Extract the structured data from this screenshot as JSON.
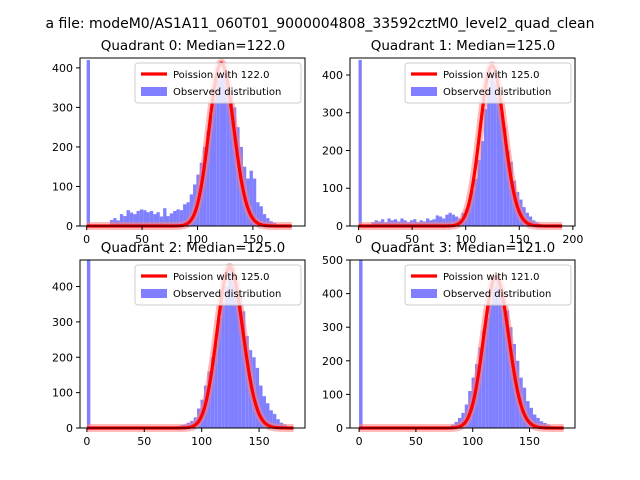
{
  "figure": {
    "suptitle": "a file: modeM0/AS1A11_060T01_9000004808_33592cztM0_level2_quad_clean"
  },
  "colors": {
    "hist": "#7f7fff",
    "fit": "#ff0000",
    "fit_glow": "#ff8080",
    "axis": "#000000"
  },
  "chart_data": [
    {
      "type": "bar",
      "title": "Quadrant 0: Median=122.0",
      "xlabel": "",
      "ylabel": "",
      "xlim": [
        -6,
        197
      ],
      "ylim": [
        0,
        425
      ],
      "xticks": [
        0,
        50,
        100,
        150
      ],
      "yticks": [
        0,
        100,
        200,
        300,
        400
      ],
      "legend": {
        "position": "top-right",
        "fit_label": "Poission with 122.0",
        "hist_label": "Observed distribution"
      },
      "series": [
        {
          "name": "Observed distribution",
          "kind": "hist",
          "bin_width": 3,
          "bins": [
            [
              0,
              420
            ],
            [
              3,
              0
            ],
            [
              6,
              0
            ],
            [
              9,
              0
            ],
            [
              12,
              0
            ],
            [
              15,
              0
            ],
            [
              18,
              0
            ],
            [
              21,
              15
            ],
            [
              24,
              20
            ],
            [
              27,
              14
            ],
            [
              30,
              30
            ],
            [
              33,
              25
            ],
            [
              36,
              40
            ],
            [
              39,
              34
            ],
            [
              42,
              30
            ],
            [
              45,
              38
            ],
            [
              48,
              42
            ],
            [
              51,
              40
            ],
            [
              54,
              35
            ],
            [
              57,
              38
            ],
            [
              60,
              30
            ],
            [
              63,
              35
            ],
            [
              66,
              24
            ],
            [
              69,
              45
            ],
            [
              72,
              25
            ],
            [
              75,
              32
            ],
            [
              78,
              38
            ],
            [
              81,
              42
            ],
            [
              84,
              40
            ],
            [
              87,
              55
            ],
            [
              90,
              60
            ],
            [
              93,
              80
            ],
            [
              96,
              105
            ],
            [
              99,
              130
            ],
            [
              102,
              160
            ],
            [
              105,
              200
            ],
            [
              108,
              240
            ],
            [
              111,
              280
            ],
            [
              114,
              320
            ],
            [
              117,
              370
            ],
            [
              120,
              380
            ],
            [
              123,
              390
            ],
            [
              126,
              350
            ],
            [
              129,
              340
            ],
            [
              132,
              300
            ],
            [
              135,
              250
            ],
            [
              138,
              200
            ],
            [
              141,
              150
            ],
            [
              144,
              120
            ],
            [
              147,
              140
            ],
            [
              150,
              120
            ],
            [
              153,
              60
            ],
            [
              156,
              50
            ],
            [
              159,
              30
            ],
            [
              162,
              20
            ],
            [
              165,
              12
            ],
            [
              168,
              8
            ]
          ]
        },
        {
          "name": "Poission with 122.0",
          "kind": "line",
          "mu": 122.0,
          "scale": 412,
          "x_range": [
            0,
            185
          ]
        }
      ]
    },
    {
      "type": "bar",
      "title": "Quadrant 1: Median=125.0",
      "xlabel": "",
      "ylabel": "",
      "xlim": [
        -8,
        202
      ],
      "ylim": [
        0,
        445
      ],
      "xticks": [
        0,
        50,
        100,
        150,
        200
      ],
      "yticks": [
        0,
        100,
        200,
        300,
        400
      ],
      "legend": {
        "position": "top-right",
        "fit_label": "Poission with 125.0",
        "hist_label": "Observed distribution"
      },
      "series": [
        {
          "name": "Observed distribution",
          "kind": "hist",
          "bin_width": 3,
          "bins": [
            [
              0,
              440
            ],
            [
              3,
              0
            ],
            [
              6,
              0
            ],
            [
              9,
              0
            ],
            [
              12,
              10
            ],
            [
              15,
              15
            ],
            [
              18,
              12
            ],
            [
              21,
              18
            ],
            [
              24,
              10
            ],
            [
              27,
              20
            ],
            [
              30,
              15
            ],
            [
              33,
              18
            ],
            [
              36,
              12
            ],
            [
              39,
              20
            ],
            [
              42,
              15
            ],
            [
              45,
              10
            ],
            [
              48,
              15
            ],
            [
              51,
              18
            ],
            [
              54,
              10
            ],
            [
              57,
              15
            ],
            [
              60,
              12
            ],
            [
              63,
              20
            ],
            [
              66,
              15
            ],
            [
              69,
              18
            ],
            [
              72,
              28
            ],
            [
              75,
              25
            ],
            [
              78,
              20
            ],
            [
              81,
              30
            ],
            [
              84,
              35
            ],
            [
              87,
              30
            ],
            [
              90,
              25
            ],
            [
              93,
              20
            ],
            [
              96,
              35
            ],
            [
              99,
              45
            ],
            [
              102,
              60
            ],
            [
              105,
              95
            ],
            [
              108,
              125
            ],
            [
              111,
              175
            ],
            [
              114,
              225
            ],
            [
              117,
              310
            ],
            [
              120,
              360
            ],
            [
              123,
              400
            ],
            [
              126,
              380
            ],
            [
              129,
              340
            ],
            [
              132,
              300
            ],
            [
              135,
              260
            ],
            [
              138,
              200
            ],
            [
              141,
              170
            ],
            [
              144,
              120
            ],
            [
              147,
              90
            ],
            [
              150,
              70
            ],
            [
              153,
              50
            ],
            [
              156,
              35
            ],
            [
              159,
              25
            ],
            [
              162,
              15
            ],
            [
              165,
              10
            ],
            [
              168,
              6
            ]
          ]
        },
        {
          "name": "Poission with 125.0",
          "kind": "line",
          "mu": 125.0,
          "scale": 425,
          "x_range": [
            0,
            190
          ]
        }
      ]
    },
    {
      "type": "bar",
      "title": "Quadrant 2: Median=125.0",
      "xlabel": "",
      "ylabel": "",
      "xlim": [
        -6,
        190
      ],
      "ylim": [
        0,
        475
      ],
      "xticks": [
        0,
        50,
        100,
        150
      ],
      "yticks": [
        0,
        100,
        200,
        300,
        400
      ],
      "legend": {
        "position": "top-right",
        "fit_label": "Poission with 125.0",
        "hist_label": "Observed distribution"
      },
      "series": [
        {
          "name": "Observed distribution",
          "kind": "hist",
          "bin_width": 3,
          "bins": [
            [
              0,
              475
            ],
            [
              78,
              5
            ],
            [
              81,
              8
            ],
            [
              84,
              10
            ],
            [
              87,
              15
            ],
            [
              90,
              20
            ],
            [
              93,
              30
            ],
            [
              96,
              55
            ],
            [
              99,
              80
            ],
            [
              102,
              120
            ],
            [
              105,
              160
            ],
            [
              108,
              200
            ],
            [
              111,
              240
            ],
            [
              114,
              310
            ],
            [
              117,
              355
            ],
            [
              120,
              400
            ],
            [
              123,
              450
            ],
            [
              126,
              440
            ],
            [
              129,
              410
            ],
            [
              132,
              380
            ],
            [
              135,
              330
            ],
            [
              138,
              260
            ],
            [
              141,
              220
            ],
            [
              144,
              200
            ],
            [
              147,
              170
            ],
            [
              150,
              120
            ],
            [
              153,
              90
            ],
            [
              156,
              70
            ],
            [
              159,
              50
            ],
            [
              162,
              40
            ],
            [
              165,
              25
            ],
            [
              168,
              15
            ],
            [
              171,
              10
            ],
            [
              174,
              5
            ]
          ]
        },
        {
          "name": "Poission with 125.0",
          "kind": "line",
          "mu": 125.0,
          "scale": 455,
          "x_range": [
            0,
            180
          ]
        }
      ]
    },
    {
      "type": "bar",
      "title": "Quadrant 3: Median=121.0",
      "xlabel": "",
      "ylabel": "",
      "xlim": [
        -8,
        190
      ],
      "ylim": [
        0,
        500
      ],
      "xticks": [
        0,
        50,
        100,
        150
      ],
      "yticks": [
        0,
        100,
        200,
        300,
        400,
        500
      ],
      "legend": {
        "position": "top-right",
        "fit_label": "Poission with 121.0",
        "hist_label": "Observed distribution"
      },
      "series": [
        {
          "name": "Observed distribution",
          "kind": "hist",
          "bin_width": 3,
          "bins": [
            [
              0,
              500
            ],
            [
              78,
              5
            ],
            [
              81,
              10
            ],
            [
              84,
              18
            ],
            [
              87,
              30
            ],
            [
              90,
              45
            ],
            [
              93,
              70
            ],
            [
              96,
              110
            ],
            [
              99,
              150
            ],
            [
              102,
              190
            ],
            [
              105,
              240
            ],
            [
              108,
              290
            ],
            [
              111,
              330
            ],
            [
              114,
              370
            ],
            [
              117,
              420
            ],
            [
              120,
              440
            ],
            [
              123,
              400
            ],
            [
              126,
              380
            ],
            [
              129,
              350
            ],
            [
              132,
              300
            ],
            [
              135,
              250
            ],
            [
              138,
              200
            ],
            [
              141,
              150
            ],
            [
              144,
              120
            ],
            [
              147,
              80
            ],
            [
              150,
              60
            ],
            [
              153,
              40
            ],
            [
              156,
              30
            ],
            [
              159,
              20
            ],
            [
              162,
              15
            ],
            [
              165,
              10
            ],
            [
              168,
              6
            ]
          ]
        },
        {
          "name": "Poission with 121.0",
          "kind": "line",
          "mu": 121.0,
          "scale": 450,
          "x_range": [
            0,
            180
          ]
        }
      ]
    }
  ]
}
